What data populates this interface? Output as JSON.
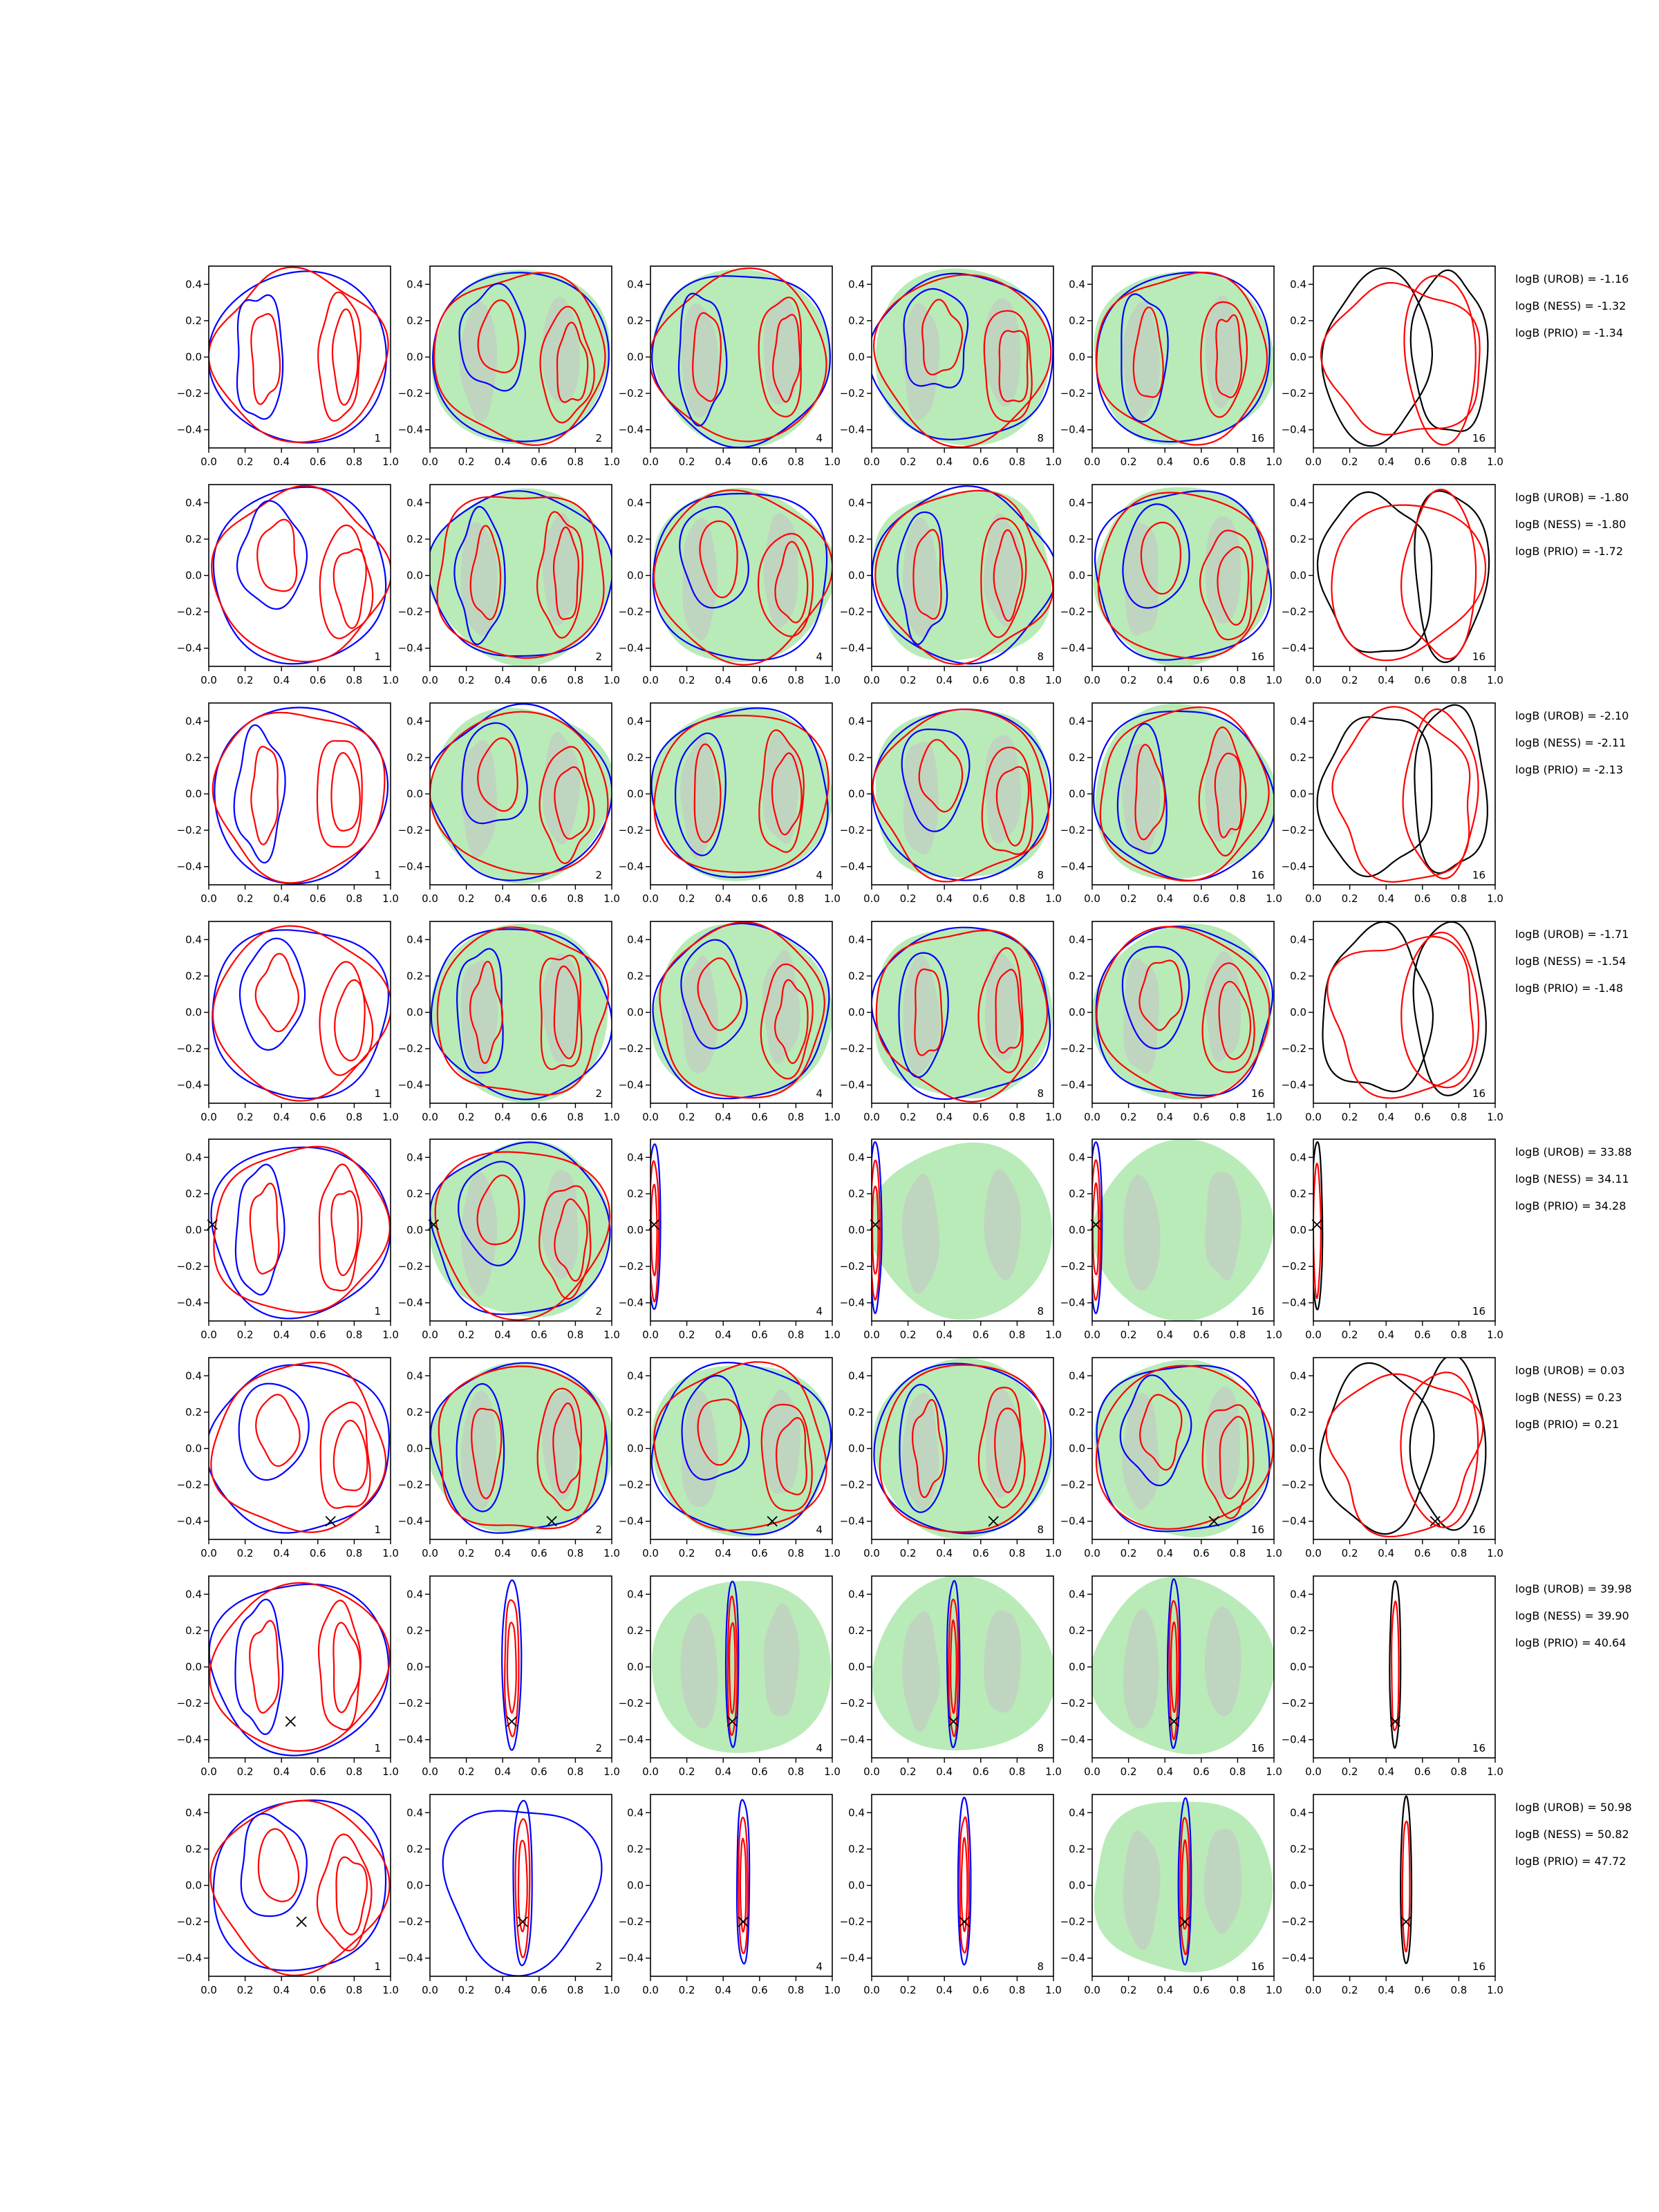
{
  "chart_data": {
    "type": "contour",
    "grid": false,
    "xlim": [
      0.0,
      1.0
    ],
    "ylim": [
      -0.5,
      0.5
    ],
    "x_ticks": [
      "0.0",
      "0.2",
      "0.4",
      "0.6",
      "0.8",
      "1.0"
    ],
    "y_ticks": [
      "0.4",
      "0.2",
      "0.0",
      "−0.2",
      "−0.4"
    ],
    "column_labels": [
      "1",
      "2",
      "4",
      "8",
      "16",
      "16"
    ],
    "colors": {
      "blue": "#0000ff",
      "red": "#ff0000",
      "black": "#000000",
      "green_fill": "#b8ebb8",
      "gray_fill": "#c2cfc2"
    },
    "rows": [
      {
        "marker": null,
        "logB": [
          "logB (UROB) = -1.16",
          "logB (NESS) = -1.32",
          "logB (PRIO) = -1.34"
        ]
      },
      {
        "marker": null,
        "logB": [
          "logB (UROB) = -1.80",
          "logB (NESS) = -1.80",
          "logB (PRIO) = -1.72"
        ]
      },
      {
        "marker": null,
        "logB": [
          "logB (UROB) = -2.10",
          "logB (NESS) = -2.11",
          "logB (PRIO) = -2.13"
        ]
      },
      {
        "marker": null,
        "logB": [
          "logB (UROB) = -1.71",
          "logB (NESS) = -1.54",
          "logB (PRIO) = -1.48"
        ]
      },
      {
        "marker": [
          0.02,
          0.03
        ],
        "logB": [
          "logB (UROB) = 33.88",
          "logB (NESS) = 34.11",
          "logB (PRIO) = 34.28"
        ]
      },
      {
        "marker": [
          0.67,
          -0.4
        ],
        "logB": [
          "logB (UROB) = 0.03",
          "logB (NESS) = 0.23",
          "logB (PRIO) = 0.21"
        ]
      },
      {
        "marker": [
          0.45,
          -0.3
        ],
        "logB": [
          "logB (UROB) = 39.98",
          "logB (NESS) = 39.90",
          "logB (PRIO) = 40.64"
        ]
      },
      {
        "marker": [
          0.51,
          -0.2
        ],
        "logB": [
          "logB (UROB) = 50.98",
          "logB (NESS) = 50.82",
          "logB (PRIO) = 47.72"
        ]
      }
    ]
  }
}
